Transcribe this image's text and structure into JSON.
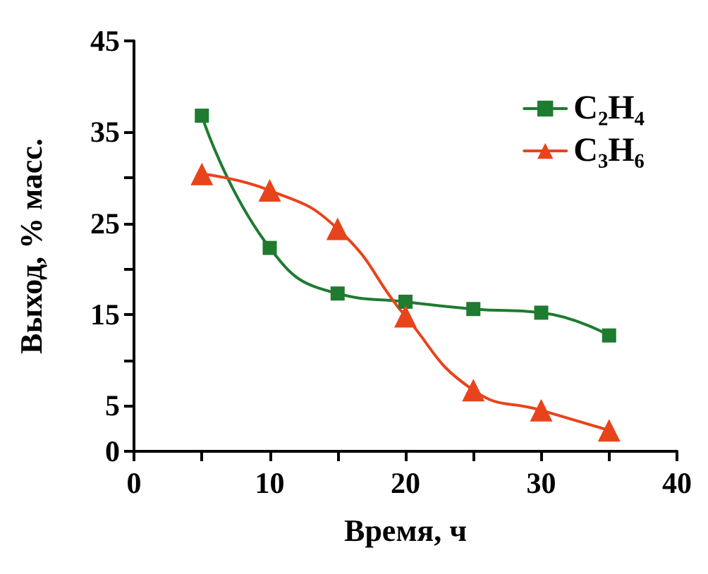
{
  "chart_data": {
    "type": "line",
    "xlabel": "Время, ч",
    "ylabel": "Выход, % масс.",
    "x": [
      5,
      10,
      15,
      20,
      25,
      30,
      35
    ],
    "series": [
      {
        "name": "C₂H₄",
        "color": "#1e7b30",
        "marker": "square",
        "values": [
          36.8,
          22.3,
          17.3,
          16.4,
          15.6,
          15.2,
          12.7
        ]
      },
      {
        "name": "C₃H₆",
        "color": "#e8441c",
        "marker": "triangle",
        "values": [
          30.4,
          28.6,
          24.4,
          14.8,
          6.7,
          4.5,
          2.3
        ]
      }
    ],
    "xlim": [
      0,
      40
    ],
    "xticks": [
      0,
      {
        "value": 5,
        "label": null
      },
      10,
      {
        "value": 15,
        "label": null
      },
      20,
      {
        "value": 25,
        "label": null
      },
      30,
      {
        "value": 35,
        "label": null
      },
      40
    ],
    "ylim": [
      0,
      45
    ],
    "yticks": [
      0,
      5,
      {
        "value": 10,
        "label": null
      },
      15,
      {
        "value": 20,
        "label": null
      },
      25,
      {
        "value": 30,
        "label": null
      },
      35,
      45
    ],
    "grid": false,
    "legend": "top right"
  }
}
